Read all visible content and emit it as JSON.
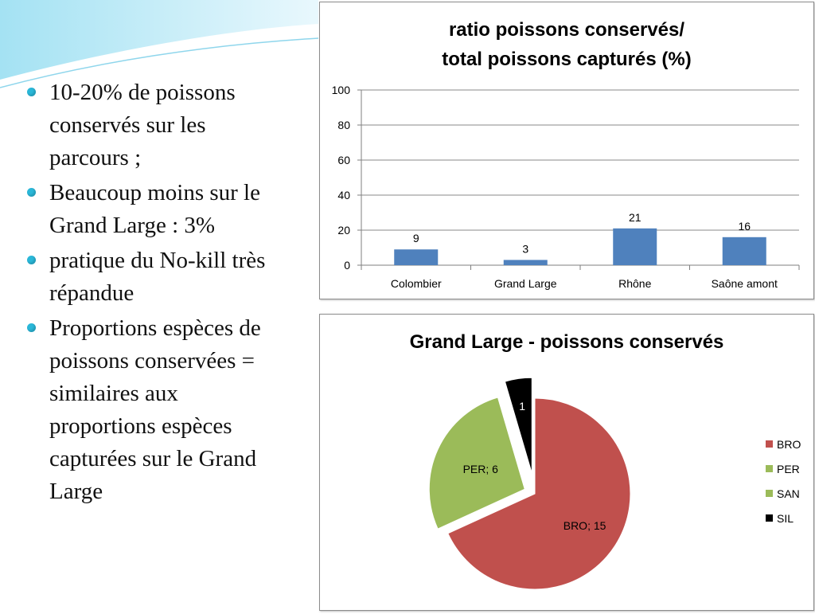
{
  "bullets": [
    "10-20% de poissons conservés sur les parcours ;",
    "Beaucoup moins sur le Grand Large : 3%",
    "pratique du No-kill très répandue",
    "Proportions espèces de poissons conservées = similaires aux proportions espèces capturées sur le Grand Large"
  ],
  "colors": {
    "bullet": "#2ab7d8",
    "bar": "#4f81bd",
    "BRO": "#c0504d",
    "PER": "#9bbb59",
    "SAN": "#9bbb59",
    "SIL": "#000000"
  },
  "chart_data": [
    {
      "type": "bar",
      "title": [
        "ratio poissons conservés/",
        "total poissons capturés (%)"
      ],
      "categories": [
        "Colombier",
        "Grand Large",
        "Rhône",
        "Saône amont"
      ],
      "values": [
        9,
        3,
        21,
        16
      ],
      "value_labels": [
        "9",
        "3",
        "21",
        "16"
      ],
      "ylim": [
        0,
        100
      ],
      "yticks": [
        "0",
        "20",
        "40",
        "60",
        "80",
        "100"
      ],
      "grid": true,
      "legend": "none"
    },
    {
      "type": "pie",
      "title": "Grand Large - poissons conservés",
      "slices": [
        {
          "name": "BRO",
          "value": 15,
          "label": "BRO; 15"
        },
        {
          "name": "PER",
          "value": 6,
          "label": "PER; 6"
        },
        {
          "name": "SAN",
          "value": 0,
          "label": ""
        },
        {
          "name": "SIL",
          "value": 1,
          "label": "1"
        }
      ],
      "legend": "right",
      "legend_entries": [
        "BRO",
        "PER",
        "SAN",
        "SIL"
      ],
      "exploded": true
    }
  ]
}
